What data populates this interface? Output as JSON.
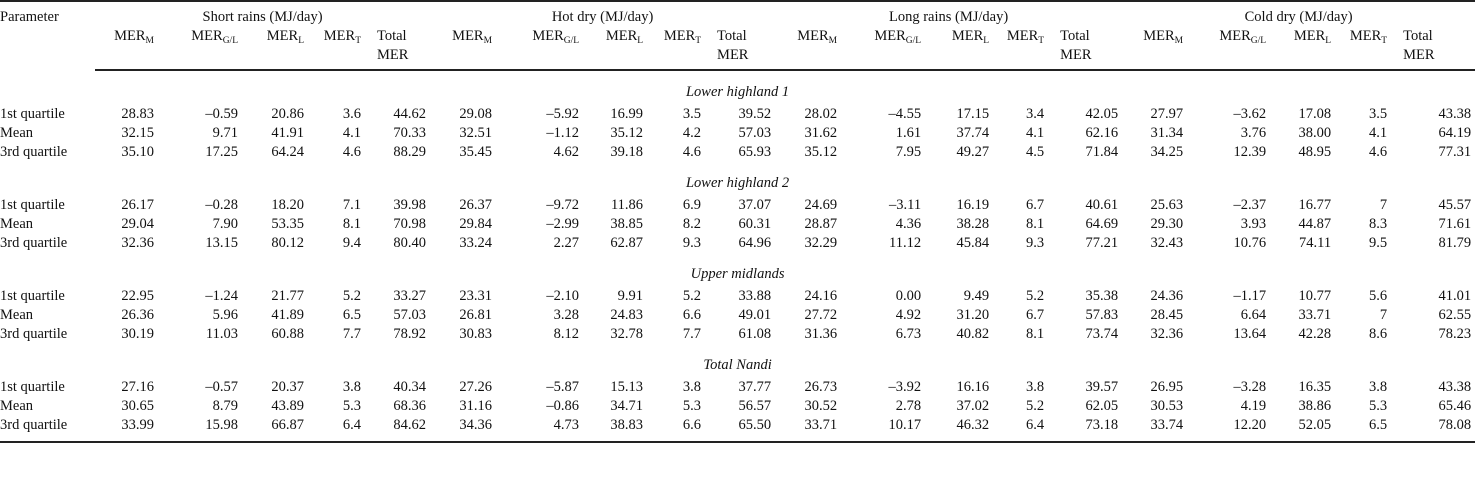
{
  "header": {
    "parameter": "Parameter",
    "seasons": [
      "Short rains (MJ/day)",
      "Hot dry (MJ/day)",
      "Long rains (MJ/day)",
      "Cold dry (MJ/day)"
    ],
    "cols": [
      {
        "base": "MER",
        "sub": "M"
      },
      {
        "base": "MER",
        "sub": "G/L"
      },
      {
        "base": "MER",
        "sub": "L"
      },
      {
        "base": "MER",
        "sub": "T"
      },
      {
        "line1": "Total",
        "line2": "MER"
      }
    ]
  },
  "sections": [
    {
      "title": "Lower highland 1",
      "rows": [
        {
          "label": "1st quartile",
          "values": [
            "28.83",
            "–0.59",
            "20.86",
            "3.6",
            "44.62",
            "29.08",
            "–5.92",
            "16.99",
            "3.5",
            "39.52",
            "28.02",
            "–4.55",
            "17.15",
            "3.4",
            "42.05",
            "27.97",
            "–3.62",
            "17.08",
            "3.5",
            "43.38"
          ]
        },
        {
          "label": "Mean",
          "values": [
            "32.15",
            "9.71",
            "41.91",
            "4.1",
            "70.33",
            "32.51",
            "–1.12",
            "35.12",
            "4.2",
            "57.03",
            "31.62",
            "1.61",
            "37.74",
            "4.1",
            "62.16",
            "31.34",
            "3.76",
            "38.00",
            "4.1",
            "64.19"
          ]
        },
        {
          "label": "3rd quartile",
          "values": [
            "35.10",
            "17.25",
            "64.24",
            "4.6",
            "88.29",
            "35.45",
            "4.62",
            "39.18",
            "4.6",
            "65.93",
            "35.12",
            "7.95",
            "49.27",
            "4.5",
            "71.84",
            "34.25",
            "12.39",
            "48.95",
            "4.6",
            "77.31"
          ]
        }
      ]
    },
    {
      "title": "Lower highland 2",
      "rows": [
        {
          "label": "1st quartile",
          "values": [
            "26.17",
            "–0.28",
            "18.20",
            "7.1",
            "39.98",
            "26.37",
            "–9.72",
            "11.86",
            "6.9",
            "37.07",
            "24.69",
            "–3.11",
            "16.19",
            "6.7",
            "40.61",
            "25.63",
            "–2.37",
            "16.77",
            "7",
            "45.57"
          ]
        },
        {
          "label": "Mean",
          "values": [
            "29.04",
            "7.90",
            "53.35",
            "8.1",
            "70.98",
            "29.84",
            "–2.99",
            "38.85",
            "8.2",
            "60.31",
            "28.87",
            "4.36",
            "38.28",
            "8.1",
            "64.69",
            "29.30",
            "3.93",
            "44.87",
            "8.3",
            "71.61"
          ]
        },
        {
          "label": "3rd quartile",
          "values": [
            "32.36",
            "13.15",
            "80.12",
            "9.4",
            "80.40",
            "33.24",
            "2.27",
            "62.87",
            "9.3",
            "64.96",
            "32.29",
            "11.12",
            "45.84",
            "9.3",
            "77.21",
            "32.43",
            "10.76",
            "74.11",
            "9.5",
            "81.79"
          ]
        }
      ]
    },
    {
      "title": "Upper midlands",
      "rows": [
        {
          "label": "1st quartile",
          "values": [
            "22.95",
            "–1.24",
            "21.77",
            "5.2",
            "33.27",
            "23.31",
            "–2.10",
            "9.91",
            "5.2",
            "33.88",
            "24.16",
            "0.00",
            "9.49",
            "5.2",
            "35.38",
            "24.36",
            "–1.17",
            "10.77",
            "5.6",
            "41.01"
          ]
        },
        {
          "label": "Mean",
          "values": [
            "26.36",
            "5.96",
            "41.89",
            "6.5",
            "57.03",
            "26.81",
            "3.28",
            "24.83",
            "6.6",
            "49.01",
            "27.72",
            "4.92",
            "31.20",
            "6.7",
            "57.83",
            "28.45",
            "6.64",
            "33.71",
            "7",
            "62.55"
          ]
        },
        {
          "label": "3rd quartile",
          "values": [
            "30.19",
            "11.03",
            "60.88",
            "7.7",
            "78.92",
            "30.83",
            "8.12",
            "32.78",
            "7.7",
            "61.08",
            "31.36",
            "6.73",
            "40.82",
            "8.1",
            "73.74",
            "32.36",
            "13.64",
            "42.28",
            "8.6",
            "78.23"
          ]
        }
      ]
    },
    {
      "title": "Total Nandi",
      "rows": [
        {
          "label": "1st quartile",
          "values": [
            "27.16",
            "–0.57",
            "20.37",
            "3.8",
            "40.34",
            "27.26",
            "–5.87",
            "15.13",
            "3.8",
            "37.77",
            "26.73",
            "–3.92",
            "16.16",
            "3.8",
            "39.57",
            "26.95",
            "–3.28",
            "16.35",
            "3.8",
            "43.38"
          ]
        },
        {
          "label": "Mean",
          "values": [
            "30.65",
            "8.79",
            "43.89",
            "5.3",
            "68.36",
            "31.16",
            "–0.86",
            "34.71",
            "5.3",
            "56.57",
            "30.52",
            "2.78",
            "37.02",
            "5.2",
            "62.05",
            "30.53",
            "4.19",
            "38.86",
            "5.3",
            "65.46"
          ]
        },
        {
          "label": "3rd quartile",
          "values": [
            "33.99",
            "15.98",
            "66.87",
            "6.4",
            "84.62",
            "34.36",
            "4.73",
            "38.83",
            "6.6",
            "65.50",
            "33.71",
            "10.17",
            "46.32",
            "6.4",
            "73.18",
            "33.74",
            "12.20",
            "52.05",
            "6.5",
            "78.08"
          ]
        }
      ]
    }
  ]
}
